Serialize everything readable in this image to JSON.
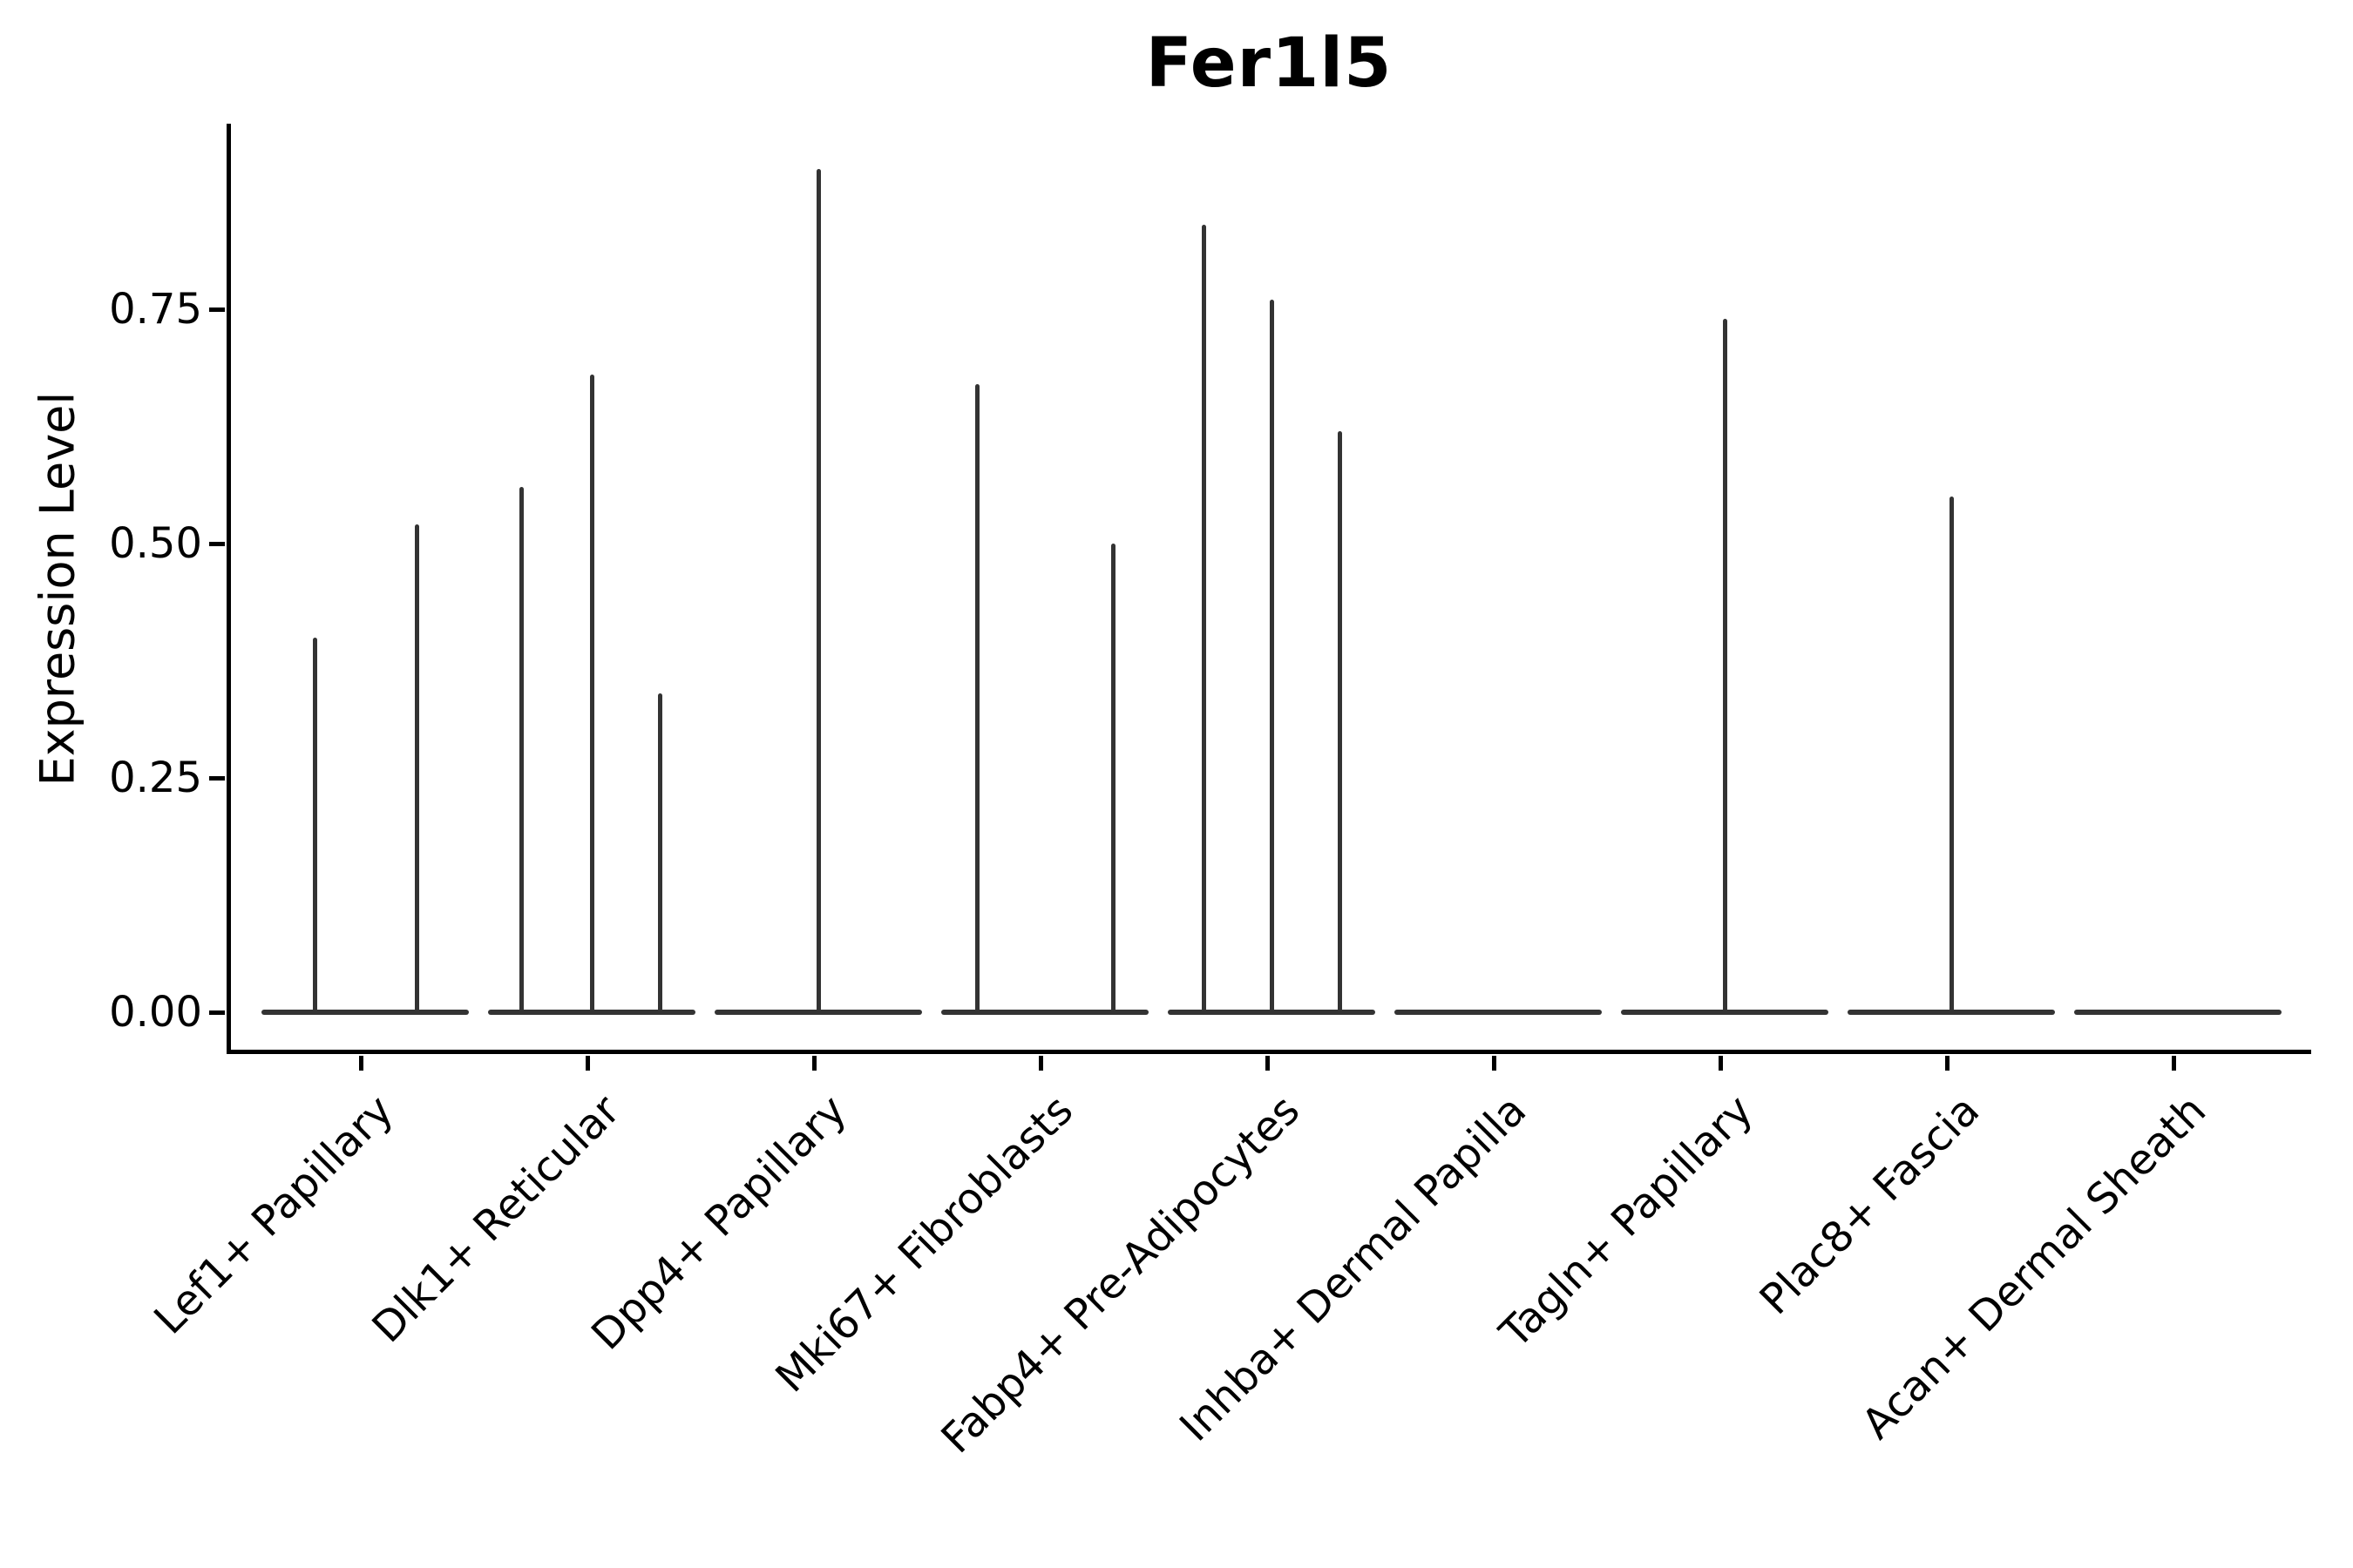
{
  "figure": {
    "title": "Fer1l5"
  },
  "chart_data": {
    "type": "violin",
    "title": "Fer1l5",
    "xlabel": "",
    "ylabel": "Expression Level",
    "ylim": [
      -0.045,
      0.95
    ],
    "yticks": [
      {
        "value": 0.0,
        "label": "0.00"
      },
      {
        "value": 0.25,
        "label": "0.25"
      },
      {
        "value": 0.5,
        "label": "0.50"
      },
      {
        "value": 0.75,
        "label": "0.75"
      }
    ],
    "grid": false,
    "legend": null,
    "x_tick_rotation_deg": 45,
    "categories": [
      "Lef1+ Papillary",
      "Dlk1+ Reticular",
      "Dpp4+ Papillary",
      "Mki67+ Fibroblasts",
      "Fabp4+ Pre-Adipocytes",
      "Inhba+ Dermal Papilla",
      "Tagln+ Papillary",
      "Plac8+ Fascia",
      "Acan+ Dermal Sheath"
    ],
    "series": [
      {
        "category": "Lef1+ Papillary",
        "baseline_value": 0.0,
        "spikes": [
          {
            "pos": -0.22,
            "peak": 0.4
          },
          {
            "pos": 0.23,
            "peak": 0.52
          }
        ]
      },
      {
        "category": "Dlk1+ Reticular",
        "baseline_value": 0.0,
        "spikes": [
          {
            "pos": -0.31,
            "peak": 0.56
          },
          {
            "pos": 0.0,
            "peak": 0.68
          },
          {
            "pos": 0.3,
            "peak": 0.34
          }
        ]
      },
      {
        "category": "Dpp4+ Papillary",
        "baseline_value": 0.0,
        "spikes": [
          {
            "pos": 0.0,
            "peak": 0.9
          }
        ]
      },
      {
        "category": "Mki67+ Fibroblasts",
        "baseline_value": 0.0,
        "spikes": [
          {
            "pos": -0.3,
            "peak": 0.67
          },
          {
            "pos": 0.3,
            "peak": 0.5
          }
        ]
      },
      {
        "category": "Fabp4+ Pre-Adipocytes",
        "baseline_value": 0.0,
        "spikes": [
          {
            "pos": -0.3,
            "peak": 0.84
          },
          {
            "pos": 0.0,
            "peak": 0.76
          },
          {
            "pos": 0.3,
            "peak": 0.62
          }
        ]
      },
      {
        "category": "Inhba+ Dermal Papilla",
        "baseline_value": 0.0,
        "spikes": []
      },
      {
        "category": "Tagln+ Papillary",
        "baseline_value": 0.0,
        "spikes": [
          {
            "pos": 0.0,
            "peak": 0.74
          }
        ]
      },
      {
        "category": "Plac8+ Fascia",
        "baseline_value": 0.0,
        "spikes": [
          {
            "pos": 0.0,
            "peak": 0.55
          }
        ]
      },
      {
        "category": "Acan+ Dermal Sheath",
        "baseline_value": 0.0,
        "spikes": []
      }
    ],
    "colors": {
      "violin": "#333333",
      "axis": "#000000",
      "text": "#000000",
      "background": "#ffffff"
    }
  }
}
